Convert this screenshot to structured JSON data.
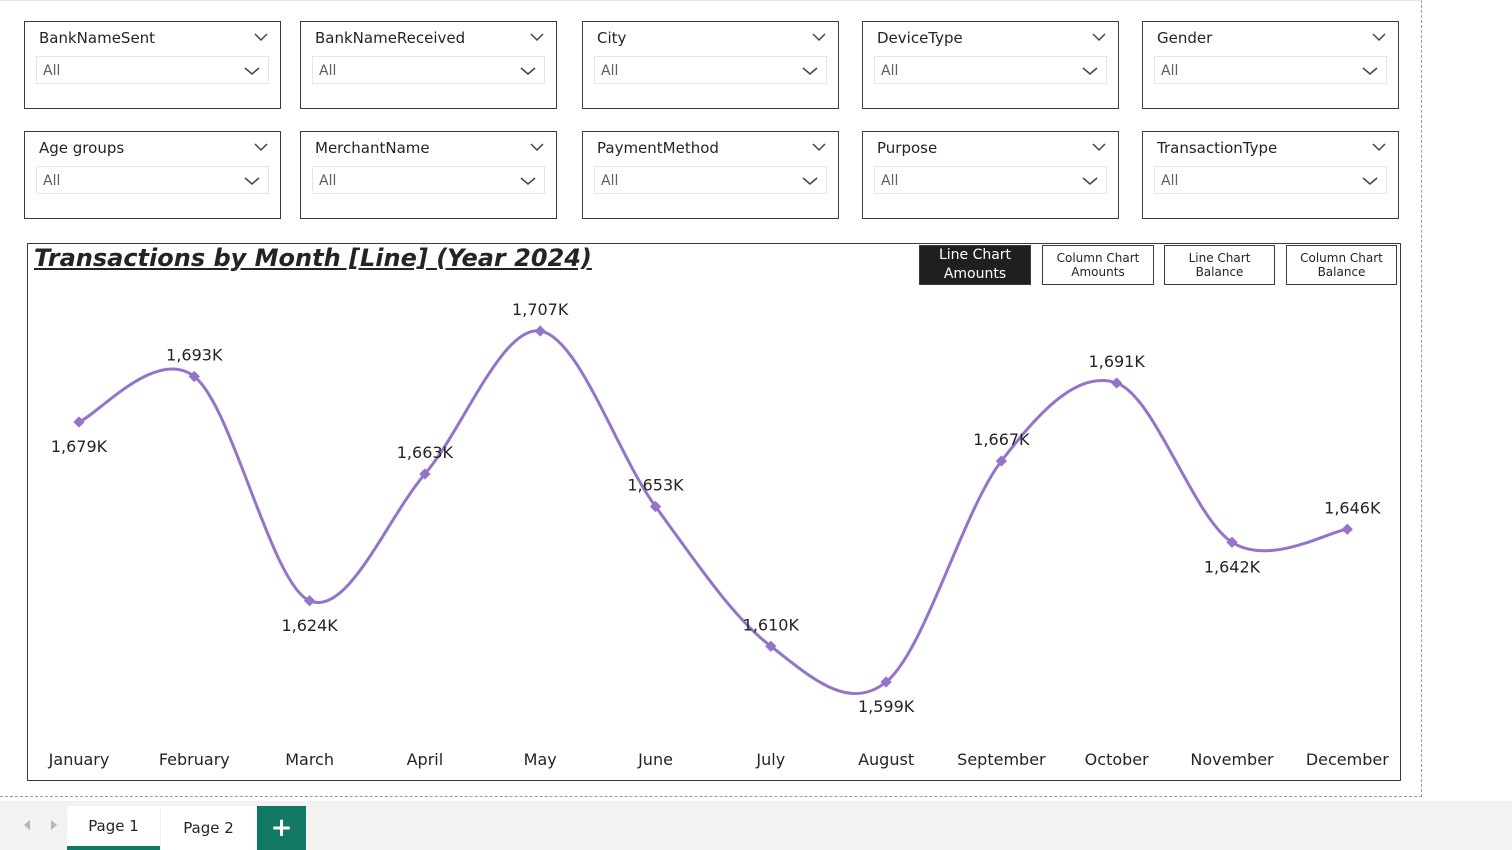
{
  "slicers": [
    {
      "label": "BankNameSent",
      "value": "All"
    },
    {
      "label": "BankNameReceived",
      "value": "All"
    },
    {
      "label": "City",
      "value": "All"
    },
    {
      "label": "DeviceType",
      "value": "All"
    },
    {
      "label": "Gender",
      "value": "All"
    },
    {
      "label": "Age groups",
      "value": "All"
    },
    {
      "label": "MerchantName",
      "value": "All"
    },
    {
      "label": "PaymentMethod",
      "value": "All"
    },
    {
      "label": "Purpose",
      "value": "All"
    },
    {
      "label": "TransactionType",
      "value": "All"
    }
  ],
  "chart_buttons": [
    {
      "label": "Line Chart\nAmounts",
      "active": true
    },
    {
      "label": "Column Chart\nAmounts",
      "active": false
    },
    {
      "label": "Line Chart Balance",
      "active": false
    },
    {
      "label": "Column Chart\nBalance",
      "active": false
    }
  ],
  "chart_data": {
    "type": "line",
    "title": "Transactions by Month [Line] (Year 2024)",
    "categories": [
      "January",
      "February",
      "March",
      "April",
      "May",
      "June",
      "July",
      "August",
      "September",
      "October",
      "November",
      "December"
    ],
    "values": [
      1679,
      1693,
      1624,
      1663,
      1707,
      1653,
      1610,
      1599,
      1667,
      1691,
      1642,
      1646
    ],
    "labels": [
      "1,679K",
      "1,693K",
      "1,624K",
      "1,663K",
      "1,707K",
      "1,653K",
      "1,610K",
      "1,599K",
      "1,667K",
      "1,691K",
      "1,642K",
      "1,646K"
    ],
    "unit": "K",
    "line_color": "#9474c8",
    "grid": false,
    "legend": "none"
  },
  "footer": {
    "tabs": [
      {
        "label": "Page 1",
        "active": true
      },
      {
        "label": "Page 2",
        "active": false
      }
    ],
    "add_label": "+"
  },
  "colors": {
    "accent": "#117865",
    "line": "#9474c8",
    "active_button": "#1f1f1f"
  }
}
